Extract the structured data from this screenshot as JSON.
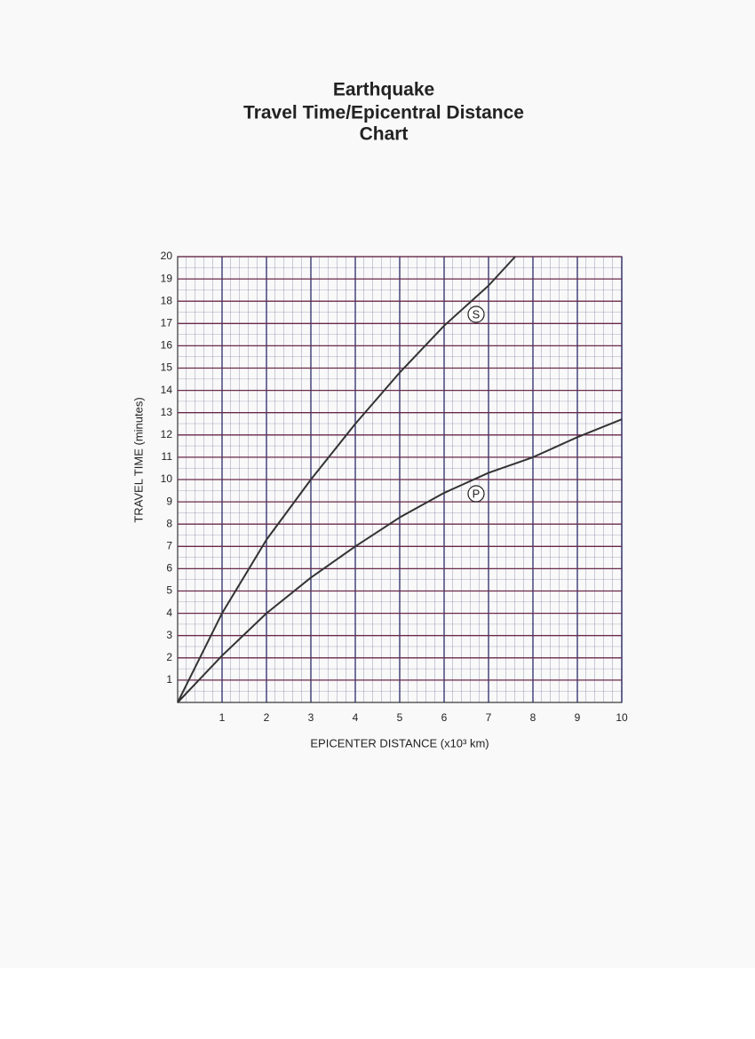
{
  "chart_data": {
    "type": "line",
    "title": [
      "Earthquake",
      "Travel Time/Epicentral Distance",
      "Chart"
    ],
    "x_label": "EPICENTER DISTANCE (x10³ km)",
    "y_label": "TRAVEL TIME (minutes)",
    "xlim": [
      0,
      10
    ],
    "ylim": [
      0,
      20
    ],
    "xticks": [
      1,
      2,
      3,
      4,
      5,
      6,
      7,
      8,
      9,
      10
    ],
    "yticks": [
      1,
      2,
      3,
      4,
      5,
      6,
      7,
      8,
      9,
      10,
      11,
      12,
      13,
      14,
      15,
      16,
      17,
      18,
      19,
      20
    ],
    "grid": true,
    "series": [
      {
        "name": "S",
        "color": "#333333",
        "x": [
          0,
          1,
          2,
          3,
          4,
          5,
          6,
          7,
          7.6
        ],
        "values": [
          0,
          4,
          7.3,
          10,
          12.5,
          14.8,
          16.9,
          18.7,
          20
        ]
      },
      {
        "name": "P",
        "color": "#333333",
        "x": [
          0,
          1,
          2,
          3,
          4,
          5,
          6,
          7,
          8,
          9,
          10
        ],
        "values": [
          0,
          2.1,
          4,
          5.6,
          7,
          8.3,
          9.4,
          10.3,
          11,
          11.9,
          12.7
        ]
      }
    ]
  }
}
